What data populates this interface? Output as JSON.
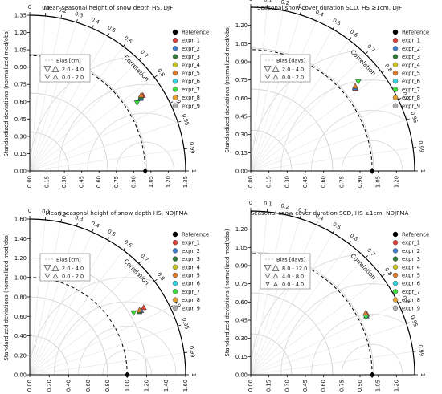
{
  "series_styles": [
    {
      "name": "Reference",
      "color": "#000000"
    },
    {
      "name": "expr_1",
      "color": "#e0403a"
    },
    {
      "name": "expr_2",
      "color": "#3a7fd0"
    },
    {
      "name": "expr_3",
      "color": "#2f7d32"
    },
    {
      "name": "expr_4",
      "color": "#c8c41c"
    },
    {
      "name": "expr_5",
      "color": "#e07a2a"
    },
    {
      "name": "expr_6",
      "color": "#35d1e0"
    },
    {
      "name": "expr_7",
      "color": "#3cdc3c"
    },
    {
      "name": "expr_8",
      "color": "#e8a030"
    },
    {
      "name": "expr_9",
      "color": "#b0b0b0"
    }
  ],
  "chart_data": [
    {
      "type": "scatter",
      "subtype": "taylor-diagram",
      "title": "Mean seasonal height of snow depth HS, DJF",
      "ylabel": "Standardized deviations (normalized mod/obs)",
      "angular_label": "Correlation",
      "std_max": 1.35,
      "std_ticks": [
        "0.00",
        "0.15",
        "0.30",
        "0.45",
        "0.60",
        "0.75",
        "0.90",
        "1.05",
        "1.20",
        "1.35"
      ],
      "corr_ticks": [
        "0",
        "0.1",
        "0.2",
        "0.3",
        "0.4",
        "0.5",
        "0.6",
        "0.7",
        "0.8",
        "0.9",
        "0.95",
        "0.99",
        "1"
      ],
      "rms_labels": [],
      "legend_title": "Bias [cm]",
      "bias_classes": [
        "2.0 - 4.0",
        "0.0 - 2.0"
      ],
      "reference": {
        "std": 1.0,
        "corr": 1.0
      },
      "points": [
        {
          "name": "expr_1",
          "std": 1.18,
          "corr": 0.83
        },
        {
          "name": "expr_2",
          "std": 1.15,
          "corr": 0.835
        },
        {
          "name": "expr_3",
          "std": 1.16,
          "corr": 0.83
        },
        {
          "name": "expr_5",
          "std": 1.17,
          "corr": 0.825
        },
        {
          "name": "expr_7",
          "std": 1.1,
          "corr": 0.845
        }
      ]
    },
    {
      "type": "scatter",
      "subtype": "taylor-diagram",
      "title": "Seasonal snow cover duration SCD, HS ≥1cm, DJF",
      "ylabel": "Standardized deviations (normalized mod/obs)",
      "angular_label": "Correlation",
      "std_max": 1.35,
      "std_ticks": [
        "0.00",
        "0.15",
        "0.30",
        "0.45",
        "0.60",
        "0.75",
        "0.90",
        "1.05",
        "1.20"
      ],
      "corr_ticks": [
        "0",
        "0.1",
        "0.2",
        "0.3",
        "0.4",
        "0.5",
        "0.6",
        "0.7",
        "0.8",
        "0.9",
        "0.95",
        "0.99",
        "1"
      ],
      "rms_labels": [],
      "legend_title": "Bias [days]",
      "bias_classes": [
        "2.0 - 4.0",
        "0.0 - 2.0"
      ],
      "reference": {
        "std": 1.0,
        "corr": 1.0
      },
      "points": [
        {
          "name": "expr_1",
          "std": 1.1,
          "corr": 0.785
        },
        {
          "name": "expr_2",
          "std": 1.1,
          "corr": 0.78
        },
        {
          "name": "expr_5",
          "std": 1.11,
          "corr": 0.775
        },
        {
          "name": "expr_7",
          "std": 1.15,
          "corr": 0.77
        }
      ]
    },
    {
      "type": "scatter",
      "subtype": "taylor-diagram",
      "title": "Mean seasonal height of snow depth HS, NDJFMA",
      "ylabel": "Standardized deviations (normalized mod/obs)",
      "angular_label": "Correlation",
      "std_max": 1.6,
      "std_ticks": [
        "0.00",
        "0.20",
        "0.40",
        "0.60",
        "0.80",
        "1.00",
        "1.20",
        "1.40",
        "1.60"
      ],
      "corr_ticks": [
        "0",
        "0.1",
        "0.2",
        "0.3",
        "0.4",
        "0.5",
        "0.6",
        "0.7",
        "0.8",
        "0.9",
        "0.95",
        "0.99",
        "1"
      ],
      "rms_labels": [],
      "legend_title": "Bias [cm]",
      "bias_classes": [
        "2.0 - 4.0",
        "0.0 - 2.0"
      ],
      "reference": {
        "std": 1.0,
        "corr": 1.0
      },
      "points": [
        {
          "name": "expr_1",
          "std": 1.36,
          "corr": 0.86
        },
        {
          "name": "expr_2",
          "std": 1.32,
          "corr": 0.865
        },
        {
          "name": "expr_3",
          "std": 1.3,
          "corr": 0.865
        },
        {
          "name": "expr_5",
          "std": 1.31,
          "corr": 0.86
        },
        {
          "name": "expr_7",
          "std": 1.24,
          "corr": 0.86
        }
      ]
    },
    {
      "type": "scatter",
      "subtype": "taylor-diagram",
      "title": "Seasonal snow cover duration SCD, HS ≥1cm, NDJFMA",
      "ylabel": "Standardized deviations (normalized mod/obs)",
      "angular_label": "Correlation",
      "std_max": 1.35,
      "std_ticks": [
        "0.00",
        "0.15",
        "0.30",
        "0.45",
        "0.60",
        "0.75",
        "0.90",
        "1.05",
        "1.20"
      ],
      "corr_ticks": [
        "0",
        "0.1",
        "0.2",
        "0.3",
        "0.4",
        "0.5",
        "0.6",
        "0.7",
        "0.8",
        "0.9",
        "0.95",
        "0.99",
        "1"
      ],
      "rms_labels": [],
      "legend_title": "Bias [days]",
      "bias_classes": [
        "8.0 - 12.0",
        "4.0 - 8.0",
        "0.0 - 4.0"
      ],
      "reference": {
        "std": 1.0,
        "corr": 1.0
      },
      "points": [
        {
          "name": "expr_1",
          "std": 1.08,
          "corr": 0.885
        },
        {
          "name": "expr_2",
          "std": 1.07,
          "corr": 0.89
        },
        {
          "name": "expr_5",
          "std": 1.075,
          "corr": 0.88
        },
        {
          "name": "expr_7",
          "std": 1.06,
          "corr": 0.895
        }
      ]
    }
  ]
}
